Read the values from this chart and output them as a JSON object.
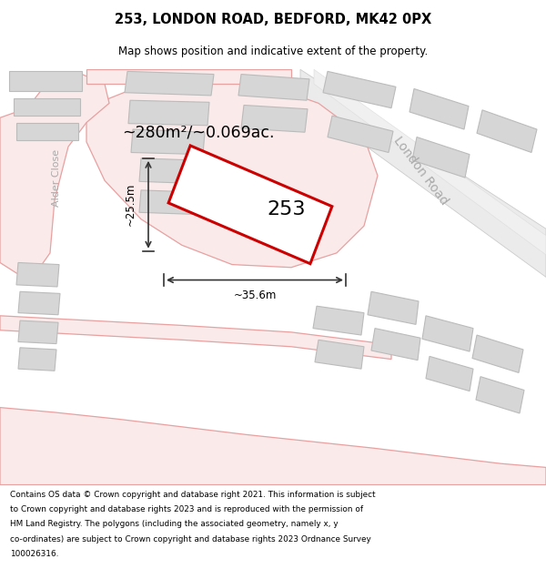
{
  "title": "253, LONDON ROAD, BEDFORD, MK42 0PX",
  "subtitle": "Map shows position and indicative extent of the property.",
  "footer_lines": [
    "Contains OS data © Crown copyright and database right 2021. This information is subject",
    "to Crown copyright and database rights 2023 and is reproduced with the permission of",
    "HM Land Registry. The polygons (including the associated geometry, namely x, y",
    "co-ordinates) are subject to Crown copyright and database rights 2023 Ordnance Survey",
    "100026316."
  ],
  "area_label": "~280m²/~0.069ac.",
  "width_label": "~35.6m",
  "height_label": "~25.5m",
  "plot_number": "253",
  "road_label": "London Road",
  "street_label": "Alder Close",
  "map_bg": "#f2f2f2",
  "building_fill": "#d6d6d6",
  "building_edge": "#bbbbbb",
  "highlight_edge": "#cc0000",
  "pink_line": "#e8a0a0",
  "pink_fill": "#faeaea",
  "gray_label": "#aaaaaa"
}
